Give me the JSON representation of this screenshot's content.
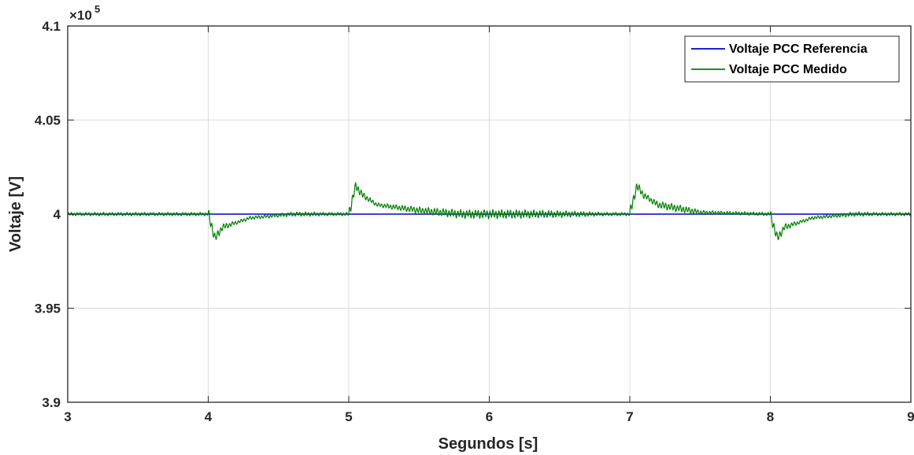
{
  "chart_data": {
    "type": "line",
    "title": "",
    "xlabel": "Segundos [s]",
    "ylabel": "Voltaje [V]",
    "xlim": [
      3,
      9
    ],
    "ylim": [
      3.9,
      4.1
    ],
    "y_exponent_label": "×10",
    "y_exponent_power": "5",
    "x_ticks": [
      "3",
      "4",
      "5",
      "6",
      "7",
      "8",
      "9"
    ],
    "y_ticks": [
      "3.9",
      "3.95",
      "4",
      "4.05",
      "4.1"
    ],
    "grid": true,
    "legend_position": "top-right",
    "series": [
      {
        "name": "Voltaje PCC Referencia",
        "color": "#0000CD",
        "x": [
          3,
          9
        ],
        "y": [
          4.0,
          4.0
        ]
      },
      {
        "name": "Voltaje PCC Medido",
        "color": "#008000",
        "description_points": {
          "x": [
            3.0,
            3.5,
            4.0,
            4.05,
            4.1,
            4.3,
            4.6,
            5.0,
            5.05,
            5.1,
            5.2,
            5.5,
            5.8,
            6.2,
            6.6,
            7.0,
            7.05,
            7.1,
            7.2,
            7.5,
            8.0,
            8.05,
            8.1,
            8.3,
            8.6,
            9.0
          ],
          "y": [
            4.0,
            4.0,
            4.0,
            3.987,
            3.993,
            3.998,
            4.0,
            4.0,
            4.015,
            4.01,
            4.005,
            4.002,
            4.0,
            4.0,
            4.0,
            4.0,
            4.015,
            4.01,
            4.005,
            4.001,
            4.0,
            3.987,
            3.993,
            3.998,
            4.0,
            4.0
          ]
        }
      }
    ]
  }
}
